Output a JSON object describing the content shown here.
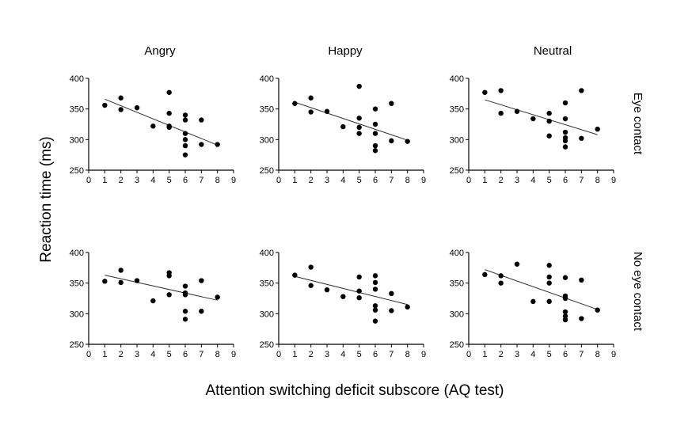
{
  "figure": {
    "ylabel": "Reaction time (ms)",
    "xlabel": "Attention switching deficit subscore (AQ test)",
    "column_titles": [
      "Angry",
      "Happy",
      "Neutral"
    ],
    "row_labels": [
      "Eye contact",
      "No eye contact"
    ]
  },
  "chart_data": [
    {
      "type": "scatter",
      "title": "Angry",
      "row": "Eye contact",
      "xlim": [
        0,
        9
      ],
      "ylim": [
        250,
        400
      ],
      "xticks": [
        0,
        1,
        2,
        3,
        4,
        5,
        6,
        7,
        8,
        9
      ],
      "yticks": [
        250,
        300,
        350,
        400
      ],
      "points": [
        [
          1,
          356
        ],
        [
          2,
          349
        ],
        [
          2,
          368
        ],
        [
          3,
          352
        ],
        [
          4,
          322
        ],
        [
          5,
          377
        ],
        [
          5,
          343
        ],
        [
          5,
          322
        ],
        [
          5,
          320
        ],
        [
          6,
          340
        ],
        [
          6,
          332
        ],
        [
          6,
          310
        ],
        [
          6,
          300
        ],
        [
          6,
          290
        ],
        [
          6,
          275
        ],
        [
          7,
          332
        ],
        [
          7,
          292
        ],
        [
          8,
          292
        ]
      ],
      "trend_line": [
        [
          1,
          366
        ],
        [
          8,
          291
        ]
      ]
    },
    {
      "type": "scatter",
      "title": "Happy",
      "row": "Eye contact",
      "xlim": [
        0,
        9
      ],
      "ylim": [
        250,
        400
      ],
      "xticks": [
        0,
        1,
        2,
        3,
        4,
        5,
        6,
        7,
        8,
        9
      ],
      "yticks": [
        250,
        300,
        350,
        400
      ],
      "points": [
        [
          1,
          359
        ],
        [
          2,
          368
        ],
        [
          2,
          345
        ],
        [
          3,
          346
        ],
        [
          4,
          321
        ],
        [
          5,
          387
        ],
        [
          5,
          335
        ],
        [
          5,
          320
        ],
        [
          5,
          310
        ],
        [
          6,
          350
        ],
        [
          6,
          325
        ],
        [
          6,
          310
        ],
        [
          6,
          290
        ],
        [
          6,
          282
        ],
        [
          7,
          359
        ],
        [
          7,
          298
        ],
        [
          8,
          297
        ]
      ],
      "trend_line": [
        [
          1,
          361
        ],
        [
          8,
          299
        ]
      ]
    },
    {
      "type": "scatter",
      "title": "Neutral",
      "row": "Eye contact",
      "xlim": [
        0,
        9
      ],
      "ylim": [
        250,
        400
      ],
      "xticks": [
        0,
        1,
        2,
        3,
        4,
        5,
        6,
        7,
        8,
        9
      ],
      "yticks": [
        250,
        300,
        350,
        400
      ],
      "points": [
        [
          1,
          377
        ],
        [
          2,
          380
        ],
        [
          2,
          343
        ],
        [
          3,
          346
        ],
        [
          4,
          334
        ],
        [
          5,
          343
        ],
        [
          5,
          330
        ],
        [
          5,
          306
        ],
        [
          6,
          360
        ],
        [
          6,
          334
        ],
        [
          6,
          312
        ],
        [
          6,
          303
        ],
        [
          6,
          298
        ],
        [
          6,
          288
        ],
        [
          7,
          380
        ],
        [
          7,
          302
        ],
        [
          8,
          317
        ]
      ],
      "trend_line": [
        [
          1,
          365
        ],
        [
          8,
          308
        ]
      ]
    },
    {
      "type": "scatter",
      "title": "Angry",
      "row": "No eye contact",
      "xlim": [
        0,
        9
      ],
      "ylim": [
        250,
        400
      ],
      "xticks": [
        0,
        1,
        2,
        3,
        4,
        5,
        6,
        7,
        8,
        9
      ],
      "yticks": [
        250,
        300,
        350,
        400
      ],
      "points": [
        [
          1,
          353
        ],
        [
          2,
          371
        ],
        [
          2,
          351
        ],
        [
          3,
          354
        ],
        [
          4,
          321
        ],
        [
          5,
          367
        ],
        [
          5,
          362
        ],
        [
          5,
          331
        ],
        [
          6,
          345
        ],
        [
          6,
          334
        ],
        [
          6,
          331
        ],
        [
          6,
          304
        ],
        [
          6,
          291
        ],
        [
          7,
          354
        ],
        [
          7,
          304
        ],
        [
          8,
          327
        ]
      ],
      "trend_line": [
        [
          1,
          363
        ],
        [
          8,
          322
        ]
      ]
    },
    {
      "type": "scatter",
      "title": "Happy",
      "row": "No eye contact",
      "xlim": [
        0,
        9
      ],
      "ylim": [
        250,
        400
      ],
      "xticks": [
        0,
        1,
        2,
        3,
        4,
        5,
        6,
        7,
        8,
        9
      ],
      "yticks": [
        250,
        300,
        350,
        400
      ],
      "points": [
        [
          1,
          363
        ],
        [
          2,
          376
        ],
        [
          2,
          346
        ],
        [
          3,
          339
        ],
        [
          4,
          328
        ],
        [
          5,
          360
        ],
        [
          5,
          337
        ],
        [
          5,
          326
        ],
        [
          6,
          362
        ],
        [
          6,
          351
        ],
        [
          6,
          340
        ],
        [
          6,
          313
        ],
        [
          6,
          306
        ],
        [
          6,
          288
        ],
        [
          7,
          333
        ],
        [
          7,
          305
        ],
        [
          8,
          311
        ]
      ],
      "trend_line": [
        [
          1,
          361
        ],
        [
          8,
          315
        ]
      ]
    },
    {
      "type": "scatter",
      "title": "Neutral",
      "row": "No eye contact",
      "xlim": [
        0,
        9
      ],
      "ylim": [
        250,
        400
      ],
      "xticks": [
        0,
        1,
        2,
        3,
        4,
        5,
        6,
        7,
        8,
        9
      ],
      "yticks": [
        250,
        300,
        350,
        400
      ],
      "points": [
        [
          1,
          364
        ],
        [
          2,
          362
        ],
        [
          2,
          350
        ],
        [
          3,
          381
        ],
        [
          4,
          320
        ],
        [
          5,
          379
        ],
        [
          5,
          360
        ],
        [
          5,
          350
        ],
        [
          5,
          320
        ],
        [
          6,
          359
        ],
        [
          6,
          329
        ],
        [
          6,
          325
        ],
        [
          6,
          303
        ],
        [
          6,
          296
        ],
        [
          6,
          290
        ],
        [
          7,
          355
        ],
        [
          7,
          292
        ],
        [
          8,
          306
        ]
      ],
      "trend_line": [
        [
          1,
          372
        ],
        [
          8,
          307
        ]
      ]
    }
  ]
}
